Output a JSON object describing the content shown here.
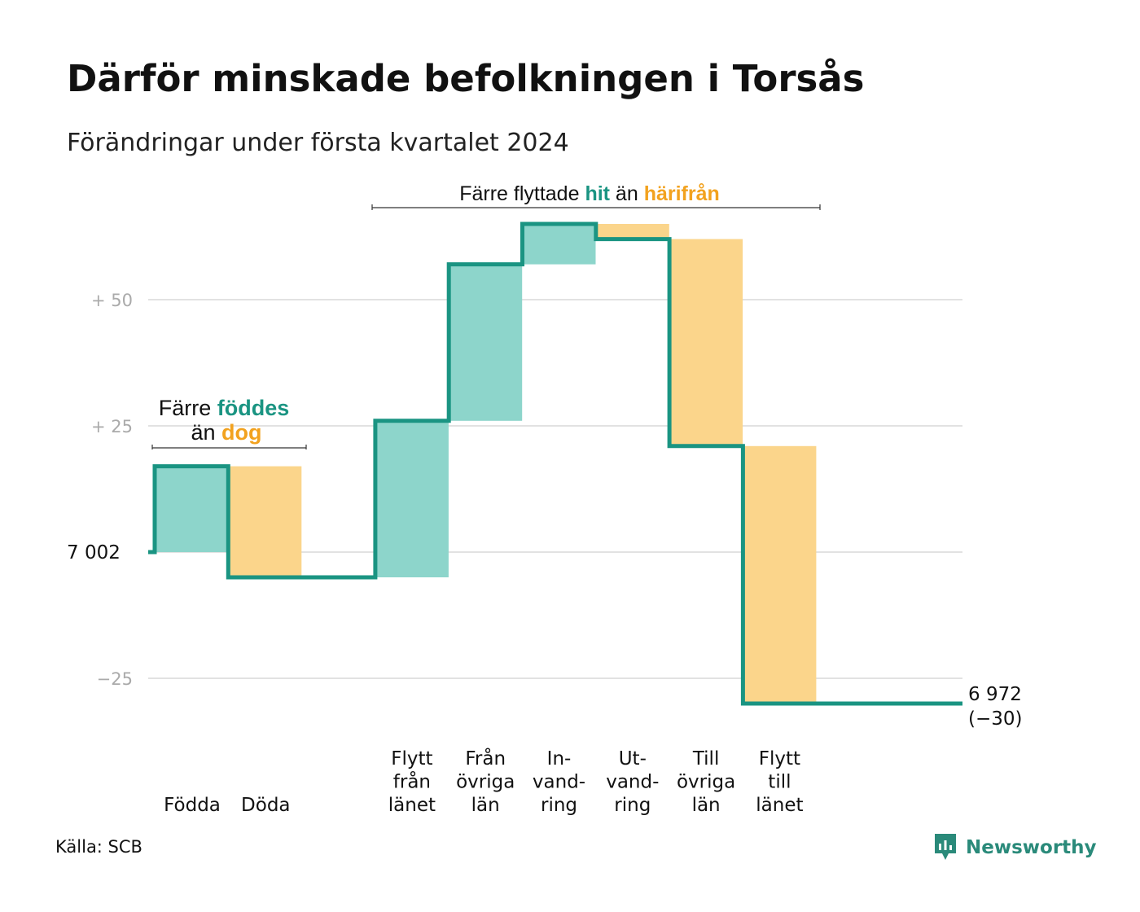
{
  "title": "Därför minskade befolkningen i Torsås",
  "subtitle": "Förändringar under första kvartalet 2024",
  "source": "Källa: SCB",
  "logo_text": "Newsworthy",
  "colors": {
    "increase_fill": "#8dd5cb",
    "decrease_fill": "#fbd58b",
    "step_line": "#1a9482",
    "accent_green": "#1a9482",
    "accent_orange": "#f2a21f",
    "gridline": "#e2e2e2",
    "tick_text": "#aaaaaa"
  },
  "annotations": {
    "births": {
      "part1": "Färre ",
      "part2": "föddes",
      "part3": "än ",
      "part4": "dog"
    },
    "migration": {
      "part1": "Färre flyttade ",
      "part2": "hit",
      "part3": " än ",
      "part4": "härifrån"
    }
  },
  "chart_data": {
    "type": "waterfall",
    "title": "Därför minskade befolkningen i Torsås",
    "subtitle": "Förändringar under första kvartalet 2024",
    "start_label": "7  002",
    "start_value": 7002,
    "end_value": 6972,
    "end_change": -30,
    "end_label_line1": "6 972",
    "end_label_line2": "(−30)",
    "ylim": [
      -32,
      66
    ],
    "y_ticks": [
      {
        "value": 50,
        "label": "+  50"
      },
      {
        "value": 25,
        "label": "+  25"
      },
      {
        "value": -25,
        "label": "−25"
      }
    ],
    "grid": true,
    "categories": [
      {
        "label": [
          "Födda"
        ],
        "delta": 17,
        "type": "increase"
      },
      {
        "label": [
          "Döda"
        ],
        "delta": -22,
        "type": "decrease"
      },
      {
        "label": [],
        "delta": 0,
        "type": "gap"
      },
      {
        "label": [
          "Flytt",
          "från",
          "länet"
        ],
        "delta": 31,
        "type": "increase"
      },
      {
        "label": [
          "Från",
          "övriga",
          "län"
        ],
        "delta": 31,
        "type": "increase"
      },
      {
        "label": [
          "In-",
          "vand-",
          "ring"
        ],
        "delta": 8,
        "type": "increase"
      },
      {
        "label": [
          "Ut-",
          "vand-",
          "ring"
        ],
        "delta": -3,
        "type": "decrease"
      },
      {
        "label": [
          "Till",
          "övriga",
          "län"
        ],
        "delta": -41,
        "type": "decrease"
      },
      {
        "label": [
          "Flytt",
          "till",
          "länet"
        ],
        "delta": -51,
        "type": "decrease"
      }
    ]
  }
}
